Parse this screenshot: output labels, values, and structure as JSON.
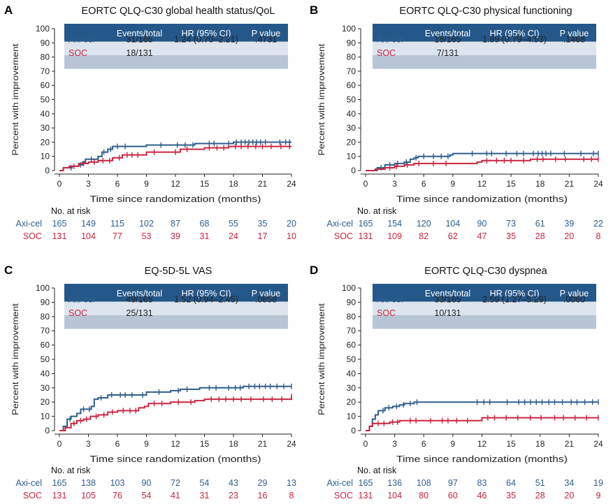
{
  "colors": {
    "axicel": "#2E5E8C",
    "soc": "#C8243F",
    "table_header": "#24578A",
    "table_row1": "#DCE4ED",
    "table_row2": "#B7C5D5",
    "axis": "#222222"
  },
  "common": {
    "xlabel": "Time since randomization (months)",
    "ylabel": "Percent with improvement",
    "xticks": [
      0,
      3,
      6,
      9,
      12,
      15,
      18,
      21,
      24
    ],
    "yticks": [
      0,
      10,
      20,
      30,
      40,
      50,
      60,
      70,
      80,
      90,
      100
    ],
    "risk_header": "No. at risk",
    "table_headers": [
      "",
      "Events/total",
      "HR (95% CI)",
      "P value"
    ]
  },
  "chart_data": [
    {
      "type": "line",
      "letter": "A",
      "title": "EORTC QLQ-C30 global health status/QoL",
      "xlim": [
        0,
        24
      ],
      "ylim": [
        0,
        100
      ],
      "table": [
        {
          "label": "Axi-cel",
          "events": "31/165",
          "hr": "1.24 (0.70–2.21)",
          "p": ".4731"
        },
        {
          "label": "SOC",
          "events": "18/131",
          "hr": "",
          "p": ""
        }
      ],
      "series": [
        {
          "name": "Axi-cel",
          "steps": [
            [
              0,
              0
            ],
            [
              0.4,
              2
            ],
            [
              1.3,
              3
            ],
            [
              2.0,
              4
            ],
            [
              2.4,
              6
            ],
            [
              2.7,
              8
            ],
            [
              4.0,
              10
            ],
            [
              4.4,
              13
            ],
            [
              5.0,
              15
            ],
            [
              5.5,
              17
            ],
            [
              9,
              18
            ],
            [
              14,
              19
            ],
            [
              18,
              20
            ],
            [
              24,
              20
            ]
          ],
          "censor": [
            1.2,
            2.2,
            3.3,
            4.6,
            5.3,
            6.0,
            6.8,
            10.5,
            12.2,
            13.0,
            13.8,
            15.5,
            16.0,
            17.5,
            18.3,
            18.8,
            19.2,
            19.6,
            20.0,
            20.4,
            20.8,
            21.3,
            22.8,
            23.4,
            23.8
          ]
        },
        {
          "name": "SOC",
          "steps": [
            [
              0,
              0
            ],
            [
              0.4,
              2
            ],
            [
              1.0,
              3
            ],
            [
              2.0,
              5
            ],
            [
              3.0,
              6
            ],
            [
              4.0,
              7
            ],
            [
              5.5,
              9
            ],
            [
              6.5,
              11
            ],
            [
              9.0,
              13
            ],
            [
              12.5,
              15
            ],
            [
              15.0,
              16
            ],
            [
              17.5,
              17
            ],
            [
              24,
              17
            ]
          ],
          "censor": [
            1.5,
            2.5,
            3.6,
            4.5,
            5.2,
            6.2,
            7.0,
            7.5,
            8.1,
            9.8,
            12.0,
            13.2,
            15.5,
            16.3,
            17.0,
            18.2,
            18.8,
            19.5,
            20.3,
            21.0,
            21.9,
            22.9,
            23.8
          ]
        }
      ],
      "risk": {
        "axicel": [
          165,
          149,
          115,
          102,
          87,
          68,
          55,
          35,
          20
        ],
        "soc": [
          131,
          104,
          77,
          53,
          39,
          31,
          24,
          17,
          10
        ]
      }
    },
    {
      "type": "line",
      "letter": "B",
      "title": "EORTC QLQ-C30 physical functioning",
      "xlim": [
        0,
        24
      ],
      "ylim": [
        0,
        100
      ],
      "table": [
        {
          "label": "Axi-cel",
          "events": "18/165",
          "hr": "1.89 (0.79–4.53)",
          "p": ".1468"
        },
        {
          "label": "SOC",
          "events": "7/131",
          "hr": "",
          "p": ""
        }
      ],
      "series": [
        {
          "name": "Axi-cel",
          "steps": [
            [
              0,
              0
            ],
            [
              1.2,
              2
            ],
            [
              2.0,
              4
            ],
            [
              3.0,
              5
            ],
            [
              4.0,
              6
            ],
            [
              4.6,
              8
            ],
            [
              5.0,
              9
            ],
            [
              5.4,
              10
            ],
            [
              8.7,
              11
            ],
            [
              9.0,
              12
            ],
            [
              24,
              12
            ]
          ],
          "censor": [
            1.6,
            2.5,
            3.3,
            4.2,
            5.2,
            6.0,
            7.0,
            7.8,
            8.5,
            11.0,
            12.5,
            13.0,
            14.5,
            15.6,
            16.3,
            17.3,
            17.8,
            18.2,
            18.6,
            19.1,
            20.5,
            22.2,
            23.5,
            24.0
          ]
        },
        {
          "name": "SOC",
          "steps": [
            [
              0,
              0
            ],
            [
              1.0,
              1
            ],
            [
              2.0,
              2
            ],
            [
              3.0,
              3
            ],
            [
              4.0,
              4
            ],
            [
              5.0,
              5
            ],
            [
              11.5,
              6
            ],
            [
              12.0,
              7
            ],
            [
              17.0,
              8
            ],
            [
              24,
              8
            ]
          ],
          "censor": [
            2.5,
            3.2,
            4.3,
            5.5,
            7.0,
            8.3,
            12.5,
            13.5,
            14.3,
            15.0,
            16.3,
            17.7,
            18.3,
            19.6,
            20.6,
            22.5,
            23.3,
            24.0
          ]
        }
      ],
      "risk": {
        "axicel": [
          165,
          154,
          120,
          104,
          90,
          73,
          61,
          39,
          22
        ],
        "soc": [
          131,
          109,
          82,
          62,
          47,
          35,
          28,
          20,
          8
        ]
      }
    },
    {
      "type": "line",
      "letter": "C",
      "title": "EQ-5D-5L VAS",
      "xlim": [
        0,
        24
      ],
      "ylim": [
        0,
        100
      ],
      "table": [
        {
          "label": "Axi-cel",
          "events": "49/165",
          "hr": "1.52 (0.94–2.45)",
          "p": ".0858"
        },
        {
          "label": "SOC",
          "events": "25/131",
          "hr": "",
          "p": ""
        }
      ],
      "series": [
        {
          "name": "Axi-cel",
          "steps": [
            [
              0,
              0
            ],
            [
              0.4,
              3
            ],
            [
              0.8,
              8
            ],
            [
              1.2,
              10
            ],
            [
              1.8,
              12
            ],
            [
              2.2,
              15
            ],
            [
              3.3,
              17
            ],
            [
              3.6,
              22
            ],
            [
              4.0,
              23
            ],
            [
              5.0,
              25
            ],
            [
              9.0,
              27
            ],
            [
              11.5,
              28
            ],
            [
              12.5,
              29
            ],
            [
              14.5,
              30
            ],
            [
              19.0,
              31
            ],
            [
              24,
              31
            ]
          ],
          "censor": [
            1.1,
            2.5,
            3.1,
            4.3,
            5.4,
            6.3,
            6.8,
            7.5,
            8.6,
            10.3,
            12.3,
            13.2,
            15.5,
            16.2,
            17.5,
            18.2,
            18.7,
            19.6,
            20.2,
            20.7,
            21.3,
            21.8,
            22.5,
            23.2,
            24.0
          ]
        },
        {
          "name": "SOC",
          "steps": [
            [
              0,
              0
            ],
            [
              0.6,
              2
            ],
            [
              1.2,
              5
            ],
            [
              1.8,
              7
            ],
            [
              2.5,
              8
            ],
            [
              3.2,
              10
            ],
            [
              4.0,
              11
            ],
            [
              5.0,
              13
            ],
            [
              6.0,
              14
            ],
            [
              8.2,
              16
            ],
            [
              8.8,
              17
            ],
            [
              9.2,
              19
            ],
            [
              11.5,
              20
            ],
            [
              14.0,
              21
            ],
            [
              15.0,
              22
            ],
            [
              24,
              24
            ]
          ],
          "censor": [
            1.5,
            2.2,
            2.8,
            3.8,
            4.6,
            5.5,
            6.6,
            7.3,
            7.9,
            9.8,
            10.6,
            12.3,
            13.6,
            15.7,
            16.5,
            17.2,
            18.0,
            18.8,
            19.8,
            21.1,
            22.0,
            23.0,
            24.0
          ]
        }
      ],
      "risk": {
        "axicel": [
          165,
          138,
          103,
          90,
          72,
          54,
          43,
          29,
          13
        ],
        "soc": [
          131,
          105,
          76,
          54,
          41,
          31,
          23,
          16,
          8
        ]
      }
    },
    {
      "type": "line",
      "letter": "D",
      "title": "EORTC QLQ-C30 dyspnea",
      "xlim": [
        0,
        24
      ],
      "ylim": [
        0,
        100
      ],
      "table": [
        {
          "label": "Axi-cel",
          "events": "33/165",
          "hr": "2.59 (1.27–5.29)",
          "p": ".0060"
        },
        {
          "label": "SOC",
          "events": "10/131",
          "hr": "",
          "p": ""
        }
      ],
      "series": [
        {
          "name": "Axi-cel",
          "steps": [
            [
              0,
              0
            ],
            [
              0.4,
              3
            ],
            [
              0.7,
              8
            ],
            [
              1.0,
              11
            ],
            [
              1.3,
              14
            ],
            [
              2.0,
              16
            ],
            [
              2.8,
              17
            ],
            [
              3.5,
              18
            ],
            [
              4.0,
              19
            ],
            [
              5.0,
              20
            ],
            [
              24,
              20
            ]
          ],
          "censor": [
            1.8,
            2.4,
            3.2,
            3.9,
            4.6,
            5.3,
            11.5,
            12.2,
            12.8,
            14.6,
            15.8,
            16.4,
            17.0,
            17.6,
            18.2,
            18.9,
            19.5,
            20.3,
            21.2,
            21.8,
            22.6,
            23.4,
            24.0
          ]
        },
        {
          "name": "SOC",
          "steps": [
            [
              0,
              0
            ],
            [
              0.4,
              3
            ],
            [
              0.7,
              5
            ],
            [
              2.5,
              6
            ],
            [
              3.5,
              7
            ],
            [
              12.0,
              9
            ],
            [
              24,
              9
            ]
          ],
          "censor": [
            1.3,
            1.9,
            2.8,
            3.3,
            4.6,
            5.2,
            6.7,
            7.9,
            8.5,
            9.4,
            10.5,
            12.6,
            13.3,
            14.5,
            15.7,
            17.0,
            18.1,
            19.5,
            20.4,
            21.6,
            22.8,
            24.0
          ]
        }
      ],
      "risk": {
        "axicel": [
          165,
          136,
          108,
          97,
          83,
          64,
          51,
          34,
          19
        ],
        "soc": [
          131,
          104,
          80,
          60,
          46,
          35,
          28,
          20,
          9
        ]
      }
    }
  ]
}
